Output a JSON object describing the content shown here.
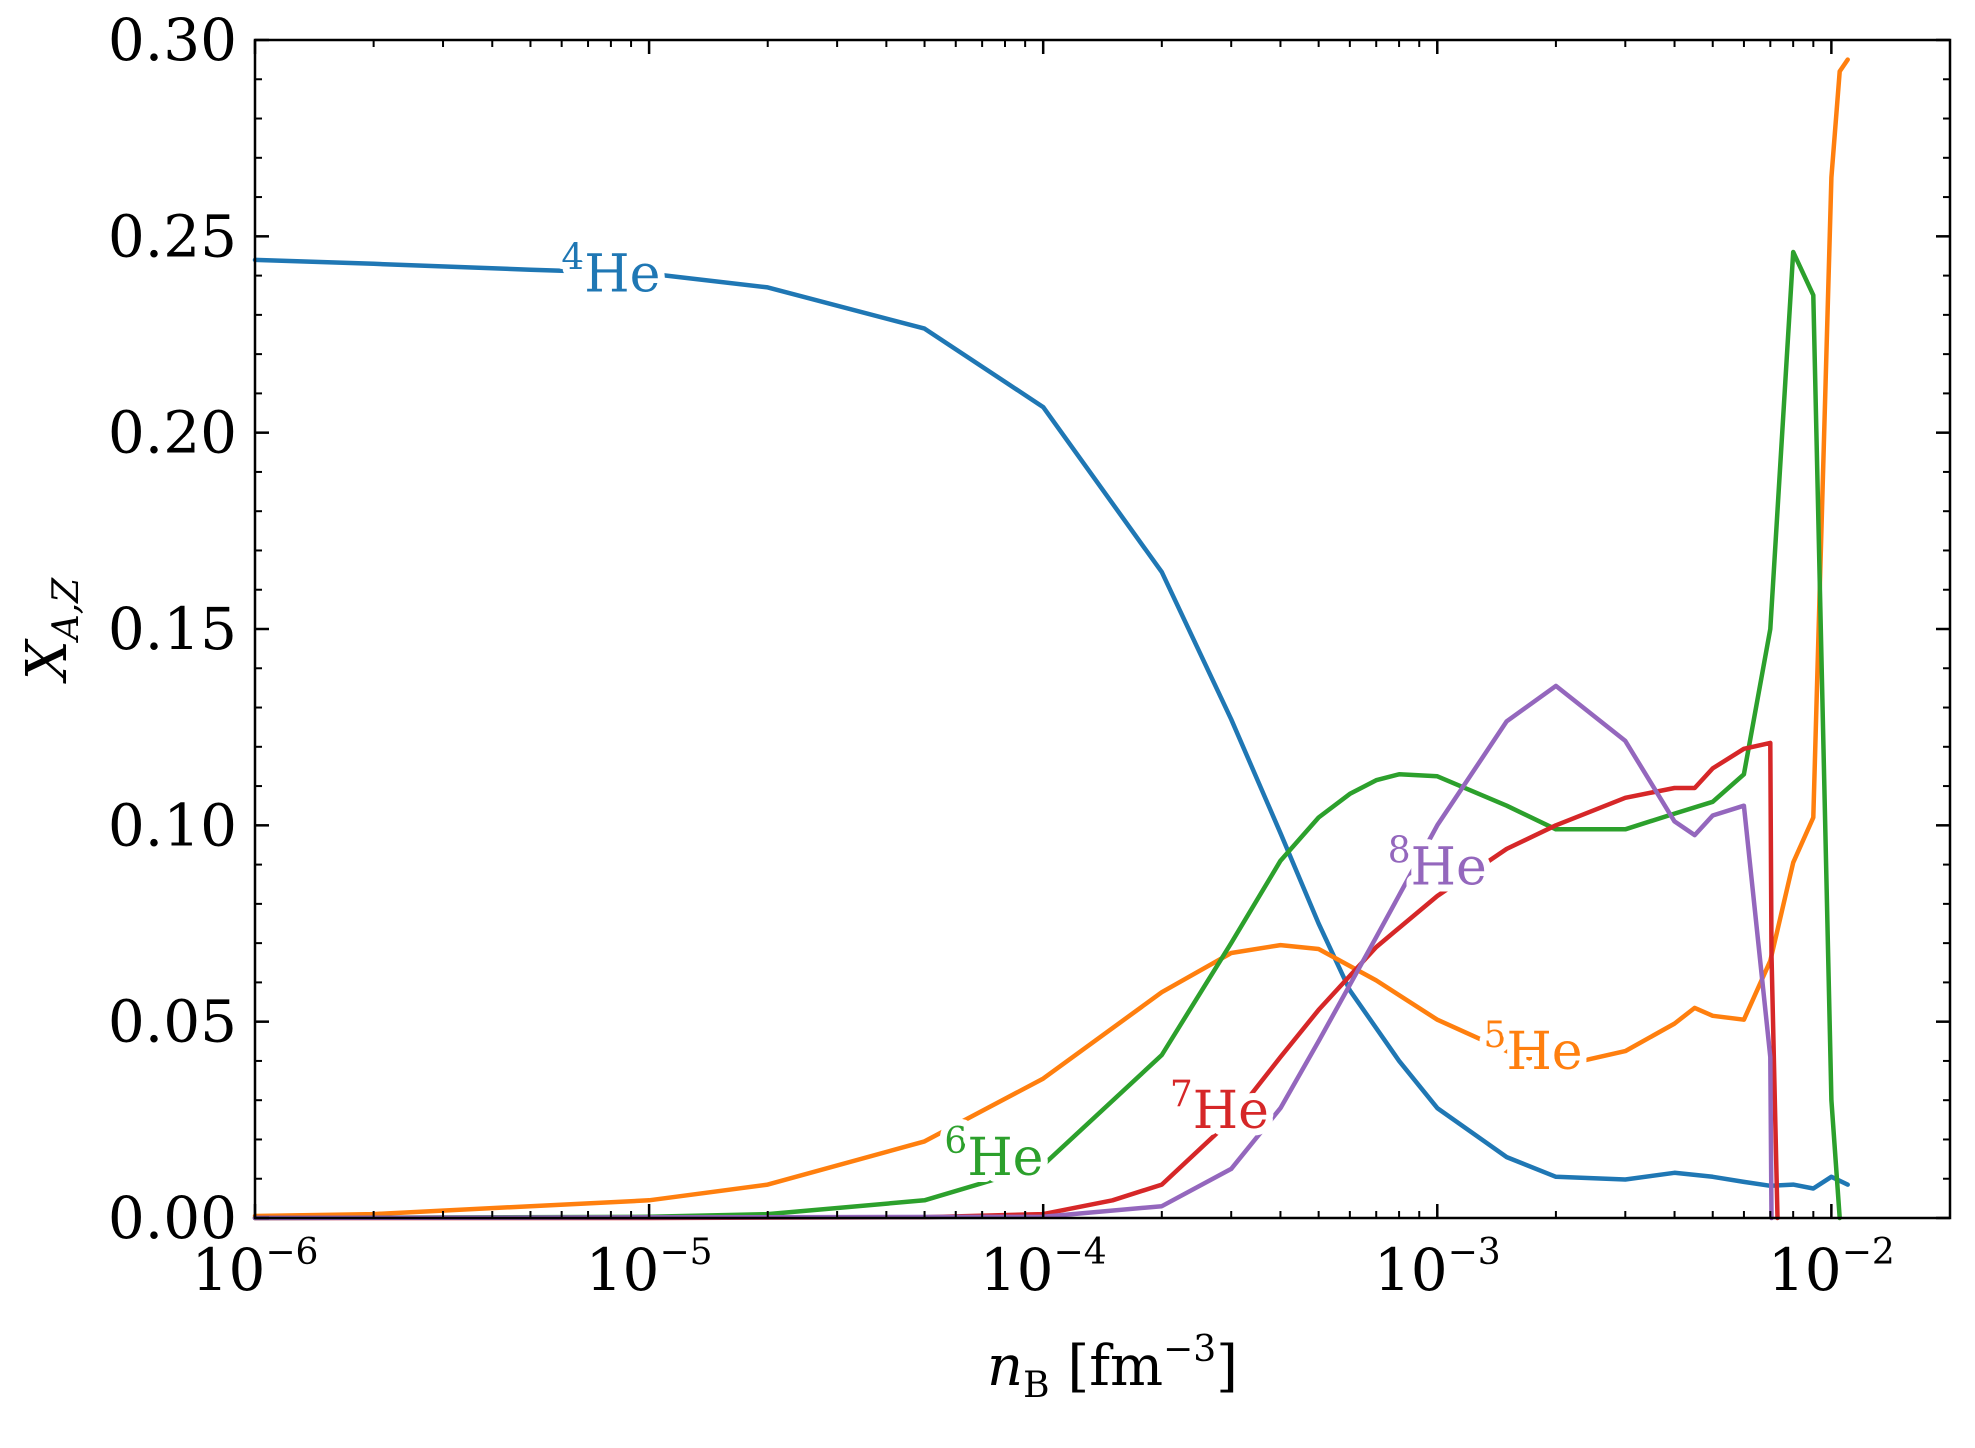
{
  "chart_data": {
    "type": "line",
    "title": "",
    "xscale": "log",
    "xlim": [
      1e-06,
      0.02
    ],
    "ylim": [
      0,
      0.3
    ],
    "xlabel": {
      "var": "n",
      "sub": "B",
      "unit_open": "[",
      "unit": "fm",
      "unit_exp": "−3",
      "unit_close": "]"
    },
    "ylabel": {
      "var": "X",
      "sub": "A,Z"
    },
    "yticks": [
      {
        "value": 0.0,
        "label": "0.00"
      },
      {
        "value": 0.05,
        "label": "0.05"
      },
      {
        "value": 0.1,
        "label": "0.10"
      },
      {
        "value": 0.15,
        "label": "0.15"
      },
      {
        "value": 0.2,
        "label": "0.20"
      },
      {
        "value": 0.25,
        "label": "0.25"
      },
      {
        "value": 0.3,
        "label": "0.30"
      }
    ],
    "xticks": [
      {
        "value": 1e-06,
        "base": "10",
        "exp": "−6"
      },
      {
        "value": 1e-05,
        "base": "10",
        "exp": "−5"
      },
      {
        "value": 0.0001,
        "base": "10",
        "exp": "−4"
      },
      {
        "value": 0.001,
        "base": "10",
        "exp": "−3"
      },
      {
        "value": 0.01,
        "base": "10",
        "exp": "−2"
      }
    ],
    "series": [
      {
        "name": "4He",
        "mass": "4",
        "element": "He",
        "color": "#1f77b4",
        "label_at": {
          "x": 8e-06,
          "y": 0.2405
        },
        "x": [
          1e-06,
          2e-06,
          5e-06,
          1e-05,
          2e-05,
          5e-05,
          0.0001,
          0.0002,
          0.0003,
          0.0004,
          0.0005,
          0.0006,
          0.0008,
          0.001,
          0.0015,
          0.002,
          0.003,
          0.004,
          0.005,
          0.006,
          0.007,
          0.008,
          0.009,
          0.01,
          0.011
        ],
        "y": [
          0.244,
          0.243,
          0.2415,
          0.2405,
          0.237,
          0.2265,
          0.2065,
          0.1645,
          0.127,
          0.098,
          0.075,
          0.058,
          0.04,
          0.028,
          0.0155,
          0.0105,
          0.0098,
          0.0115,
          0.0105,
          0.0092,
          0.0082,
          0.0085,
          0.0075,
          0.0105,
          0.0085
        ]
      },
      {
        "name": "5He",
        "mass": "5",
        "element": "He",
        "color": "#ff7f0e",
        "label_at": {
          "x": 0.00175,
          "y": 0.0425
        },
        "x": [
          1e-06,
          2e-06,
          5e-06,
          1e-05,
          2e-05,
          5e-05,
          0.0001,
          0.0002,
          0.0003,
          0.0004,
          0.0005,
          0.0007,
          0.001,
          0.0015,
          0.002,
          0.003,
          0.004,
          0.0045,
          0.005,
          0.006,
          0.007,
          0.008,
          0.009,
          0.01,
          0.0105,
          0.011
        ],
        "y": [
          0.0005,
          0.001,
          0.003,
          0.0045,
          0.0085,
          0.0195,
          0.0355,
          0.0575,
          0.0675,
          0.0695,
          0.0685,
          0.0605,
          0.0505,
          0.0425,
          0.0385,
          0.0425,
          0.0495,
          0.0535,
          0.0515,
          0.0505,
          0.0655,
          0.0905,
          0.102,
          0.265,
          0.292,
          0.295
        ]
      },
      {
        "name": "6He",
        "mass": "6",
        "element": "He",
        "color": "#2ca02c",
        "label_at": {
          "x": 7.5e-05,
          "y": 0.0155
        },
        "x": [
          1e-06,
          1e-05,
          2e-05,
          5e-05,
          0.0001,
          0.0002,
          0.0003,
          0.0004,
          0.0005,
          0.0006,
          0.0007,
          0.0008,
          0.001,
          0.0015,
          0.002,
          0.003,
          0.004,
          0.005,
          0.006,
          0.007,
          0.008,
          0.009,
          0.01,
          0.0105
        ],
        "y": [
          0.0,
          0.0003,
          0.001,
          0.0045,
          0.0135,
          0.0415,
          0.07,
          0.091,
          0.102,
          0.108,
          0.1115,
          0.113,
          0.1125,
          0.105,
          0.099,
          0.099,
          0.103,
          0.106,
          0.113,
          0.15,
          0.246,
          0.235,
          0.03,
          0.0
        ]
      },
      {
        "name": "7He",
        "mass": "7",
        "element": "He",
        "color": "#d62728",
        "label_at": {
          "x": 0.00028,
          "y": 0.0275
        },
        "x": [
          1e-06,
          1e-05,
          5e-05,
          0.0001,
          0.00015,
          0.0002,
          0.0003,
          0.0004,
          0.0005,
          0.0007,
          0.001,
          0.0015,
          0.002,
          0.003,
          0.004,
          0.0045,
          0.005,
          0.006,
          0.007,
          0.00705,
          0.0073
        ],
        "y": [
          0.0,
          0.0,
          0.0002,
          0.001,
          0.0045,
          0.0085,
          0.025,
          0.041,
          0.053,
          0.069,
          0.082,
          0.094,
          0.1,
          0.107,
          0.1095,
          0.1095,
          0.1145,
          0.1195,
          0.121,
          0.067,
          0.0
        ]
      },
      {
        "name": "8He",
        "mass": "8",
        "element": "He",
        "color": "#9467bd",
        "label_at": {
          "x": 0.001,
          "y": 0.0895
        },
        "x": [
          1e-06,
          0.0001,
          0.0002,
          0.0003,
          0.0004,
          0.0005,
          0.0007,
          0.001,
          0.0015,
          0.002,
          0.003,
          0.004,
          0.0045,
          0.005,
          0.006,
          0.007,
          0.00705
        ],
        "y": [
          0.0,
          0.0003,
          0.003,
          0.0125,
          0.028,
          0.045,
          0.0715,
          0.1,
          0.1265,
          0.1355,
          0.1215,
          0.101,
          0.0975,
          0.1025,
          0.105,
          0.041,
          0.0
        ]
      }
    ]
  }
}
